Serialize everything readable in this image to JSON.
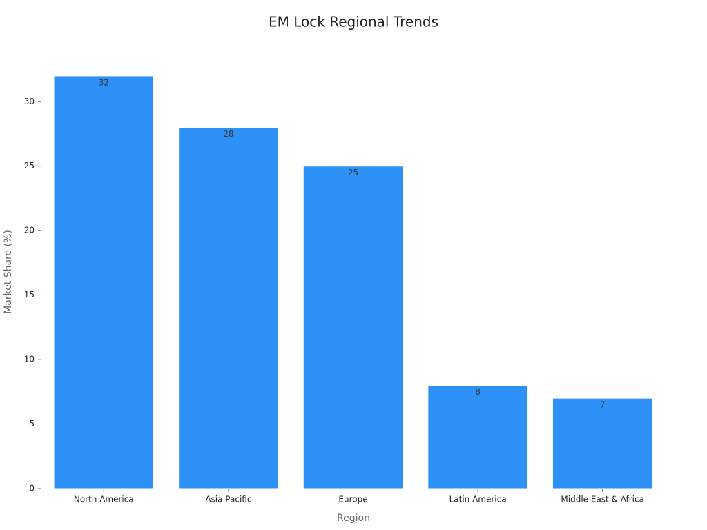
{
  "chart_data": {
    "type": "bar",
    "title": "EM Lock Regional Trends",
    "x_label": "Region",
    "y_label": "Market Share (%)",
    "categories": [
      "North America",
      "Asia Pacific",
      "Europe",
      "Latin America",
      "Middle East & Africa"
    ],
    "values": [
      32,
      28,
      25,
      8,
      7
    ],
    "color": "#2e91f8",
    "ylim": [
      0,
      33.6
    ],
    "yticks": [
      0,
      5,
      10,
      15,
      20,
      25,
      30
    ],
    "grid": false
  }
}
